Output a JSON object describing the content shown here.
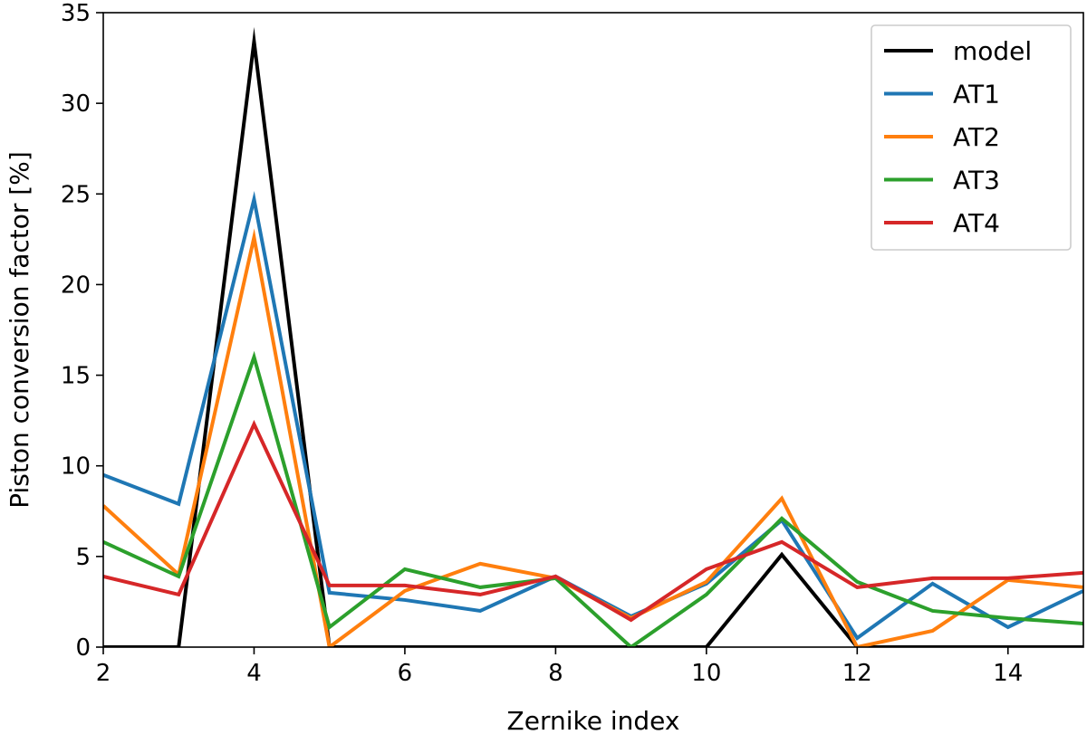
{
  "chart_data": {
    "type": "line",
    "title": "",
    "xlabel": "Zernike index",
    "ylabel": "Piston conversion factor [%]",
    "xlim": [
      2,
      15
    ],
    "ylim": [
      0,
      35
    ],
    "xticks": [
      2,
      4,
      6,
      8,
      10,
      12,
      14
    ],
    "yticks": [
      0,
      5,
      10,
      15,
      20,
      25,
      30,
      35
    ],
    "x": [
      2,
      3,
      4,
      5,
      6,
      7,
      8,
      9,
      10,
      11,
      12,
      13,
      14,
      15
    ],
    "legend_position": "top-right",
    "series": [
      {
        "name": "model",
        "color": "#000000",
        "values": [
          0,
          0,
          33.4,
          0,
          0,
          0,
          0,
          0,
          0,
          5.1,
          0,
          0,
          0,
          0
        ]
      },
      {
        "name": "AT1",
        "color": "#1f77b4",
        "values": [
          9.5,
          7.9,
          24.7,
          3.0,
          2.6,
          2.0,
          3.9,
          1.7,
          3.5,
          7.0,
          0.5,
          3.5,
          1.1,
          3.1
        ]
      },
      {
        "name": "AT2",
        "color": "#ff7f0e",
        "values": [
          7.8,
          4.0,
          22.6,
          0.0,
          3.1,
          4.6,
          3.8,
          1.6,
          3.6,
          8.2,
          0.0,
          0.9,
          3.7,
          3.3
        ]
      },
      {
        "name": "AT3",
        "color": "#2ca02c",
        "values": [
          5.8,
          3.9,
          16.0,
          1.1,
          4.3,
          3.3,
          3.8,
          0.0,
          2.9,
          7.1,
          3.6,
          2.0,
          1.6,
          1.3
        ]
      },
      {
        "name": "AT4",
        "color": "#d62728",
        "values": [
          3.9,
          2.9,
          12.3,
          3.4,
          3.4,
          2.9,
          3.9,
          1.5,
          4.3,
          5.8,
          3.3,
          3.8,
          3.8,
          4.1
        ]
      }
    ]
  }
}
